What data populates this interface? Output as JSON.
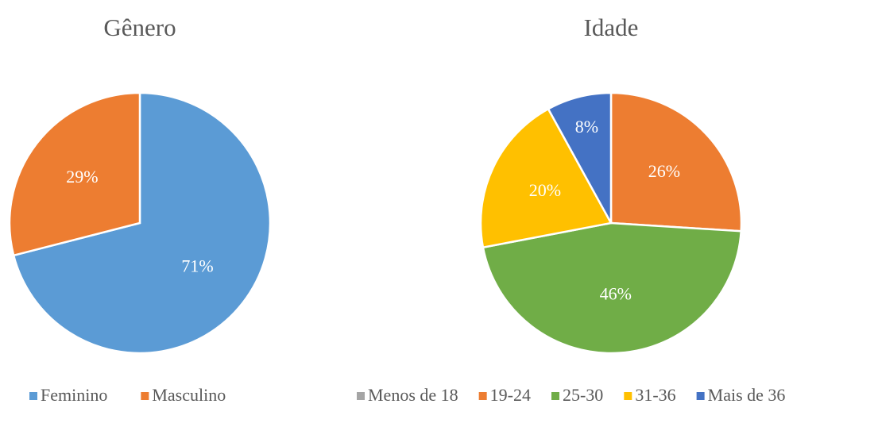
{
  "chart_data": [
    {
      "type": "pie",
      "title": "Gênero",
      "categories": [
        "Feminino",
        "Masculino"
      ],
      "values": [
        71,
        29
      ],
      "value_labels": [
        "71%",
        "29%"
      ],
      "colors": [
        "#5b9bd5",
        "#ed7d31"
      ],
      "legend": "bottom"
    },
    {
      "type": "pie",
      "title": "Idade",
      "categories": [
        "Menos de 18",
        "19-24",
        "25-30",
        "31-36",
        "Mais de 36"
      ],
      "values": [
        0,
        26,
        46,
        20,
        8
      ],
      "value_labels": [
        null,
        "26%",
        "46%",
        "20%",
        "8%"
      ],
      "colors": [
        "#a5a5a5",
        "#ed7d31",
        "#70ad47",
        "#ffc000",
        "#4472c4"
      ],
      "legend": "bottom"
    }
  ]
}
